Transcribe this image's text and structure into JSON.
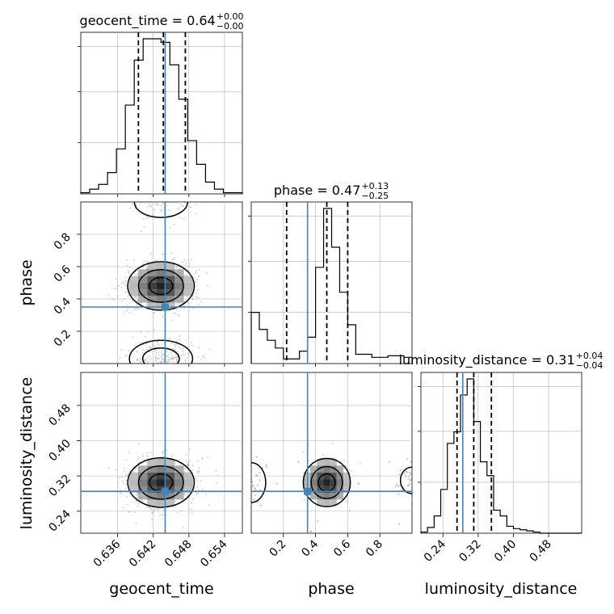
{
  "chart_data": {
    "type": "corner",
    "parameters": [
      "geocent_time",
      "phase",
      "luminosity_distance"
    ],
    "truths": {
      "geocent_time": 0.644,
      "phase": 0.35,
      "luminosity_distance": 0.285
    },
    "titles": {
      "geocent_time": {
        "prefix": "geocent_time = 0.64",
        "sup": "+0.00",
        "sub": "−0.00"
      },
      "phase": {
        "prefix": "phase = 0.47",
        "sup": "+0.13",
        "sub": "−0.25"
      },
      "luminosity_distance": {
        "prefix": "luminosity_distance = 0.31",
        "sup": "+0.04",
        "sub": "−0.04"
      }
    },
    "axes": {
      "geocent_time": {
        "label": "geocent_time",
        "range": [
          0.6298,
          0.657
        ],
        "ticks": [
          0.636,
          0.642,
          0.648,
          0.654
        ],
        "tick_labels": [
          "0.636",
          "0.642",
          "0.648",
          "0.654"
        ]
      },
      "phase": {
        "label": "phase",
        "range": [
          0.0,
          1.0
        ],
        "ticks": [
          0.2,
          0.4,
          0.6,
          0.8
        ],
        "tick_labels": [
          "0.2",
          "0.4",
          "0.6",
          "0.8"
        ]
      },
      "luminosity_distance": {
        "label": "luminosity_distance",
        "range": [
          0.19,
          0.555
        ],
        "ticks": [
          0.24,
          0.32,
          0.4,
          0.48
        ],
        "tick_labels": [
          "0.24",
          "0.32",
          "0.40",
          "0.48"
        ]
      }
    },
    "marginals": {
      "geocent_time": {
        "bin_edges": [
          0.6298,
          0.6313,
          0.6328,
          0.6343,
          0.6358,
          0.6373,
          0.6388,
          0.6403,
          0.6418,
          0.6433,
          0.6448,
          0.6463,
          0.6478,
          0.6493,
          0.6508,
          0.6523,
          0.6538,
          0.6553,
          0.657
        ],
        "counts": [
          1,
          4,
          8,
          18,
          38,
          75,
          113,
          131,
          131,
          128,
          109,
          80,
          45,
          25,
          10,
          4,
          1,
          1
        ],
        "quantiles": [
          0.6395,
          0.6437,
          0.6474
        ]
      },
      "phase": {
        "bin_edges": [
          0.0,
          0.05,
          0.1,
          0.15,
          0.2,
          0.25,
          0.3,
          0.35,
          0.4,
          0.45,
          0.5,
          0.55,
          0.6,
          0.65,
          0.7,
          0.75,
          0.8,
          0.85,
          0.9,
          0.95,
          1.0
        ],
        "counts": [
          33,
          22,
          15,
          10,
          3,
          3,
          8,
          17,
          62,
          100,
          75,
          46,
          25,
          6,
          6,
          4,
          4,
          5,
          5,
          4
        ],
        "quantiles": [
          0.22,
          0.47,
          0.6
        ]
      },
      "luminosity_distance": {
        "bin_edges": [
          0.19,
          0.205,
          0.22,
          0.235,
          0.25,
          0.265,
          0.28,
          0.295,
          0.31,
          0.325,
          0.34,
          0.355,
          0.37,
          0.385,
          0.4,
          0.415,
          0.43,
          0.445,
          0.46,
          0.475,
          0.49,
          0.555
        ],
        "counts": [
          1,
          5,
          15,
          38,
          78,
          88,
          120,
          134,
          97,
          62,
          50,
          20,
          15,
          6,
          4,
          3,
          2,
          1,
          0,
          0,
          0
        ],
        "quantiles": [
          0.272,
          0.31,
          0.35
        ]
      }
    },
    "colors": {
      "truth": "#4682b4",
      "hist": "#000000",
      "quantile": "#000000",
      "points": "#b3b3b3",
      "grid": "#b0b0b0"
    },
    "grid": true
  }
}
